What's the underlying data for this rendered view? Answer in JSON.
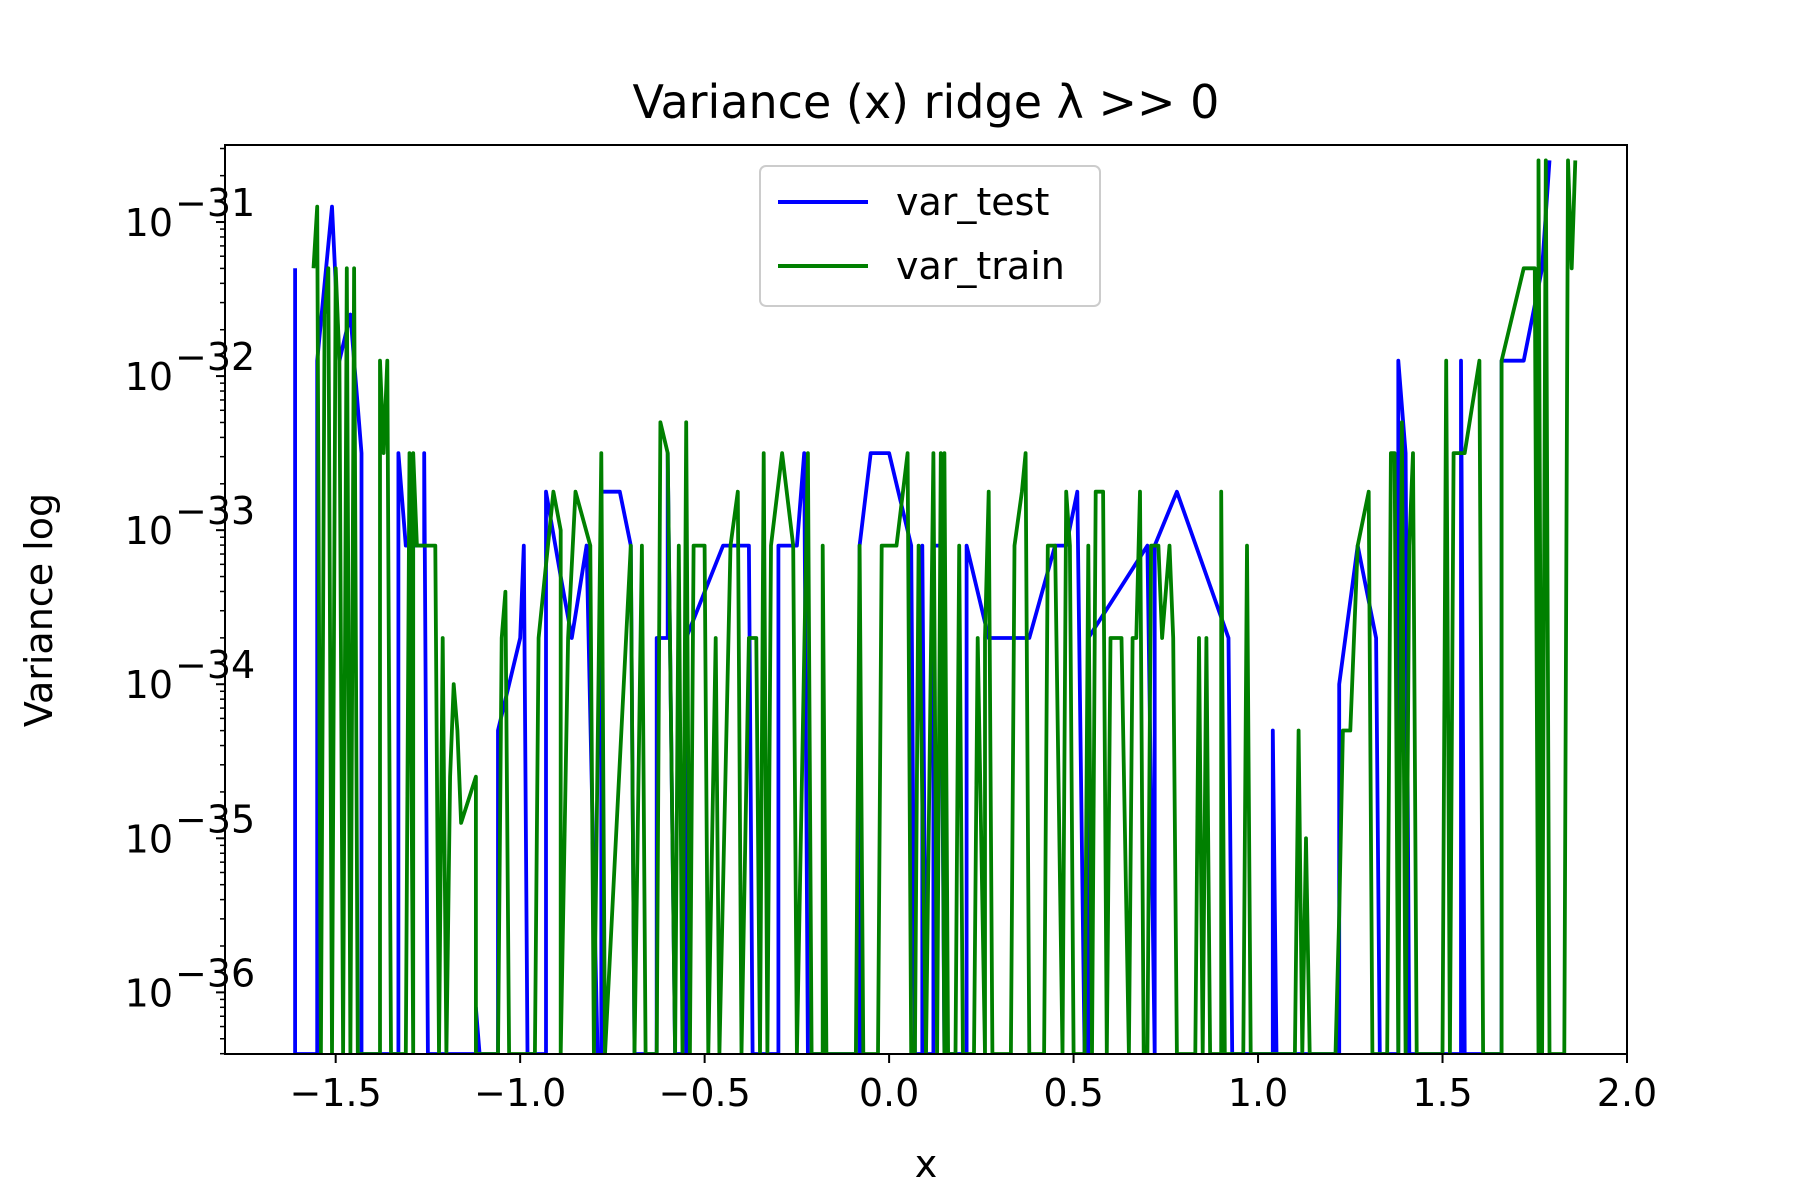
{
  "chart_data": {
    "type": "line",
    "title": "Variance (x) ridge λ >> 0",
    "xlabel": "x",
    "ylabel": "Variance log",
    "yscale": "log",
    "xlim": [
      -1.8,
      2.0
    ],
    "ylim_exponent": [
      -36.4,
      -30.5
    ],
    "xticks": [
      -1.5,
      -1.0,
      -0.5,
      0.0,
      0.5,
      1.0,
      1.5,
      2.0
    ],
    "xtick_labels": [
      "−1.5",
      "−1.0",
      "−0.5",
      "0.0",
      "0.5",
      "1.0",
      "1.5",
      "2.0"
    ],
    "ytick_exponents": [
      -36,
      -35,
      -34,
      -33,
      -32,
      -31
    ],
    "ytick_base": "10",
    "ytick_sup": [
      "−36",
      "−35",
      "−34",
      "−33",
      "−32",
      "−31"
    ],
    "grid": false,
    "legend_position": "top-center",
    "series": [
      {
        "name": "var_test",
        "color": "#0000ff",
        "points": [
          [
            -1.61,
            -31.3
          ],
          [
            -1.61,
            -36.4
          ],
          [
            -1.55,
            -36.4
          ],
          [
            -1.55,
            -31.9
          ],
          [
            -1.51,
            -30.9
          ],
          [
            -1.49,
            -31.9
          ],
          [
            -1.46,
            -31.6
          ],
          [
            -1.43,
            -32.5
          ],
          [
            -1.43,
            -36.4
          ],
          [
            -1.33,
            -36.4
          ],
          [
            -1.33,
            -32.5
          ],
          [
            -1.31,
            -33.1
          ],
          [
            -1.26,
            -33.1
          ],
          [
            -1.26,
            -32.5
          ],
          [
            -1.25,
            -36.4
          ],
          [
            -1.12,
            -36.4
          ],
          [
            -1.12,
            -36.1
          ],
          [
            -1.11,
            -36.4
          ],
          [
            -1.06,
            -36.4
          ],
          [
            -1.06,
            -34.3
          ],
          [
            -1.0,
            -33.7
          ],
          [
            -0.99,
            -33.1
          ],
          [
            -0.98,
            -36.4
          ],
          [
            -0.93,
            -36.4
          ],
          [
            -0.93,
            -32.75
          ],
          [
            -0.89,
            -33.3
          ],
          [
            -0.86,
            -33.7
          ],
          [
            -0.82,
            -33.1
          ],
          [
            -0.79,
            -36.4
          ],
          [
            -0.78,
            -36.4
          ],
          [
            -0.78,
            -32.75
          ],
          [
            -0.73,
            -32.75
          ],
          [
            -0.7,
            -33.1
          ],
          [
            -0.69,
            -36.4
          ],
          [
            -0.63,
            -36.4
          ],
          [
            -0.63,
            -33.7
          ],
          [
            -0.6,
            -33.7
          ],
          [
            -0.6,
            -32.5
          ],
          [
            -0.58,
            -36.4
          ],
          [
            -0.55,
            -36.4
          ],
          [
            -0.55,
            -33.7
          ],
          [
            -0.45,
            -33.1
          ],
          [
            -0.38,
            -33.1
          ],
          [
            -0.37,
            -36.4
          ],
          [
            -0.3,
            -36.4
          ],
          [
            -0.3,
            -33.1
          ],
          [
            -0.25,
            -33.1
          ],
          [
            -0.23,
            -32.5
          ],
          [
            -0.22,
            -36.4
          ],
          [
            -0.08,
            -36.4
          ],
          [
            -0.08,
            -33.1
          ],
          [
            -0.05,
            -32.5
          ],
          [
            0.0,
            -32.5
          ],
          [
            0.06,
            -33.1
          ],
          [
            0.07,
            -36.4
          ],
          [
            0.09,
            -36.4
          ],
          [
            0.09,
            -33.1
          ],
          [
            0.1,
            -36.4
          ],
          [
            0.12,
            -36.4
          ],
          [
            0.12,
            -33.1
          ],
          [
            0.14,
            -33.1
          ],
          [
            0.15,
            -36.4
          ],
          [
            0.21,
            -36.4
          ],
          [
            0.21,
            -33.1
          ],
          [
            0.27,
            -33.7
          ],
          [
            0.36,
            -33.7
          ],
          [
            0.38,
            -33.7
          ],
          [
            0.45,
            -33.1
          ],
          [
            0.48,
            -33.1
          ],
          [
            0.51,
            -32.75
          ],
          [
            0.53,
            -36.4
          ],
          [
            0.54,
            -36.4
          ],
          [
            0.54,
            -33.7
          ],
          [
            0.62,
            -33.4
          ],
          [
            0.7,
            -33.1
          ],
          [
            0.72,
            -36.4
          ],
          [
            0.72,
            -33.1
          ],
          [
            0.78,
            -32.75
          ],
          [
            0.92,
            -33.7
          ],
          [
            0.93,
            -36.4
          ],
          [
            1.04,
            -36.4
          ],
          [
            1.04,
            -34.3
          ],
          [
            1.05,
            -36.4
          ],
          [
            1.22,
            -36.4
          ],
          [
            1.22,
            -34.0
          ],
          [
            1.27,
            -33.1
          ],
          [
            1.32,
            -33.7
          ],
          [
            1.33,
            -36.4
          ],
          [
            1.38,
            -36.4
          ],
          [
            1.38,
            -31.9
          ],
          [
            1.4,
            -32.5
          ],
          [
            1.41,
            -36.4
          ],
          [
            1.55,
            -36.4
          ],
          [
            1.55,
            -31.9
          ],
          [
            1.56,
            -36.4
          ],
          [
            1.66,
            -36.4
          ],
          [
            1.66,
            -31.9
          ],
          [
            1.72,
            -31.9
          ],
          [
            1.77,
            -31.3
          ],
          [
            1.79,
            -30.6
          ]
        ]
      },
      {
        "name": "var_train",
        "color": "#008000",
        "points": [
          [
            -1.56,
            -31.3
          ],
          [
            -1.55,
            -30.9
          ],
          [
            -1.54,
            -36.4
          ],
          [
            -1.53,
            -31.6
          ],
          [
            -1.52,
            -31.3
          ],
          [
            -1.51,
            -36.4
          ],
          [
            -1.5,
            -31.3
          ],
          [
            -1.49,
            -31.9
          ],
          [
            -1.48,
            -36.4
          ],
          [
            -1.47,
            -31.3
          ],
          [
            -1.46,
            -36.4
          ],
          [
            -1.45,
            -31.3
          ],
          [
            -1.44,
            -36.4
          ],
          [
            -1.38,
            -36.4
          ],
          [
            -1.38,
            -31.9
          ],
          [
            -1.37,
            -32.5
          ],
          [
            -1.36,
            -31.9
          ],
          [
            -1.35,
            -36.4
          ],
          [
            -1.31,
            -36.4
          ],
          [
            -1.3,
            -32.5
          ],
          [
            -1.29,
            -36.4
          ],
          [
            -1.29,
            -32.5
          ],
          [
            -1.28,
            -33.1
          ],
          [
            -1.25,
            -33.1
          ],
          [
            -1.23,
            -33.1
          ],
          [
            -1.22,
            -36.4
          ],
          [
            -1.21,
            -33.7
          ],
          [
            -1.2,
            -36.4
          ],
          [
            -1.19,
            -34.6
          ],
          [
            -1.18,
            -34.0
          ],
          [
            -1.17,
            -34.3
          ],
          [
            -1.16,
            -34.9
          ],
          [
            -1.12,
            -34.6
          ],
          [
            -1.12,
            -36.4
          ],
          [
            -1.06,
            -36.4
          ],
          [
            -1.05,
            -33.7
          ],
          [
            -1.04,
            -33.4
          ],
          [
            -1.03,
            -36.4
          ],
          [
            -0.96,
            -36.4
          ],
          [
            -0.95,
            -33.7
          ],
          [
            -0.91,
            -32.75
          ],
          [
            -0.89,
            -33.0
          ],
          [
            -0.89,
            -36.4
          ],
          [
            -0.87,
            -33.7
          ],
          [
            -0.85,
            -32.75
          ],
          [
            -0.81,
            -33.1
          ],
          [
            -0.8,
            -36.4
          ],
          [
            -0.78,
            -32.5
          ],
          [
            -0.77,
            -36.4
          ],
          [
            -0.7,
            -33.1
          ],
          [
            -0.69,
            -36.4
          ],
          [
            -0.67,
            -33.1
          ],
          [
            -0.66,
            -36.4
          ],
          [
            -0.63,
            -36.4
          ],
          [
            -0.62,
            -32.3
          ],
          [
            -0.6,
            -32.5
          ],
          [
            -0.58,
            -36.4
          ],
          [
            -0.57,
            -33.1
          ],
          [
            -0.56,
            -36.4
          ],
          [
            -0.55,
            -32.3
          ],
          [
            -0.54,
            -36.4
          ],
          [
            -0.53,
            -33.1
          ],
          [
            -0.5,
            -33.1
          ],
          [
            -0.49,
            -36.4
          ],
          [
            -0.47,
            -33.7
          ],
          [
            -0.46,
            -36.4
          ],
          [
            -0.43,
            -33.1
          ],
          [
            -0.41,
            -32.75
          ],
          [
            -0.4,
            -36.4
          ],
          [
            -0.38,
            -33.7
          ],
          [
            -0.36,
            -33.7
          ],
          [
            -0.35,
            -36.4
          ],
          [
            -0.34,
            -32.5
          ],
          [
            -0.33,
            -36.4
          ],
          [
            -0.32,
            -33.1
          ],
          [
            -0.29,
            -32.5
          ],
          [
            -0.26,
            -33.1
          ],
          [
            -0.25,
            -36.4
          ],
          [
            -0.22,
            -32.5
          ],
          [
            -0.21,
            -36.4
          ],
          [
            -0.18,
            -36.4
          ],
          [
            -0.18,
            -33.1
          ],
          [
            -0.17,
            -36.4
          ],
          [
            -0.09,
            -36.4
          ],
          [
            -0.08,
            -33.1
          ],
          [
            -0.07,
            -36.4
          ],
          [
            -0.03,
            -36.4
          ],
          [
            -0.02,
            -33.1
          ],
          [
            0.02,
            -33.1
          ],
          [
            0.05,
            -32.5
          ],
          [
            0.06,
            -36.4
          ],
          [
            0.07,
            -36.4
          ],
          [
            0.08,
            -33.1
          ],
          [
            0.1,
            -36.4
          ],
          [
            0.12,
            -32.5
          ],
          [
            0.13,
            -36.4
          ],
          [
            0.14,
            -32.5
          ],
          [
            0.15,
            -36.4
          ],
          [
            0.15,
            -32.5
          ],
          [
            0.16,
            -36.4
          ],
          [
            0.18,
            -36.4
          ],
          [
            0.19,
            -33.1
          ],
          [
            0.2,
            -36.4
          ],
          [
            0.23,
            -36.4
          ],
          [
            0.24,
            -33.7
          ],
          [
            0.26,
            -36.4
          ],
          [
            0.26,
            -33.7
          ],
          [
            0.27,
            -32.75
          ],
          [
            0.28,
            -36.4
          ],
          [
            0.33,
            -36.4
          ],
          [
            0.34,
            -33.1
          ],
          [
            0.36,
            -32.75
          ],
          [
            0.37,
            -32.5
          ],
          [
            0.38,
            -36.4
          ],
          [
            0.42,
            -36.4
          ],
          [
            0.43,
            -33.1
          ],
          [
            0.45,
            -33.1
          ],
          [
            0.47,
            -36.4
          ],
          [
            0.48,
            -32.75
          ],
          [
            0.49,
            -33.1
          ],
          [
            0.5,
            -36.4
          ],
          [
            0.53,
            -36.4
          ],
          [
            0.54,
            -33.1
          ],
          [
            0.55,
            -36.4
          ],
          [
            0.56,
            -32.75
          ],
          [
            0.58,
            -32.75
          ],
          [
            0.59,
            -36.4
          ],
          [
            0.6,
            -33.7
          ],
          [
            0.63,
            -33.7
          ],
          [
            0.65,
            -36.4
          ],
          [
            0.66,
            -33.7
          ],
          [
            0.67,
            -33.7
          ],
          [
            0.68,
            -32.75
          ],
          [
            0.69,
            -36.4
          ],
          [
            0.7,
            -36.4
          ],
          [
            0.71,
            -33.1
          ],
          [
            0.73,
            -33.1
          ],
          [
            0.74,
            -33.7
          ],
          [
            0.75,
            -33.4
          ],
          [
            0.76,
            -33.1
          ],
          [
            0.77,
            -33.7
          ],
          [
            0.78,
            -36.4
          ],
          [
            0.83,
            -36.4
          ],
          [
            0.84,
            -33.7
          ],
          [
            0.85,
            -36.4
          ],
          [
            0.86,
            -33.7
          ],
          [
            0.87,
            -36.4
          ],
          [
            0.9,
            -36.4
          ],
          [
            0.9,
            -32.75
          ],
          [
            0.91,
            -36.4
          ],
          [
            0.96,
            -36.4
          ],
          [
            0.97,
            -33.1
          ],
          [
            0.98,
            -36.4
          ],
          [
            1.1,
            -36.4
          ],
          [
            1.11,
            -34.3
          ],
          [
            1.12,
            -36.4
          ],
          [
            1.13,
            -35.0
          ],
          [
            1.14,
            -36.4
          ],
          [
            1.21,
            -36.4
          ],
          [
            1.22,
            -35.5
          ],
          [
            1.23,
            -34.3
          ],
          [
            1.25,
            -34.3
          ],
          [
            1.27,
            -33.1
          ],
          [
            1.3,
            -32.75
          ],
          [
            1.31,
            -36.4
          ],
          [
            1.35,
            -36.4
          ],
          [
            1.36,
            -32.5
          ],
          [
            1.37,
            -32.5
          ],
          [
            1.38,
            -36.4
          ],
          [
            1.39,
            -32.3
          ],
          [
            1.4,
            -36.4
          ],
          [
            1.41,
            -33.1
          ],
          [
            1.42,
            -32.5
          ],
          [
            1.43,
            -36.4
          ],
          [
            1.44,
            -36.4
          ],
          [
            1.45,
            -36.4
          ],
          [
            1.5,
            -36.4
          ],
          [
            1.51,
            -31.9
          ],
          [
            1.52,
            -36.4
          ],
          [
            1.53,
            -32.5
          ],
          [
            1.56,
            -32.5
          ],
          [
            1.6,
            -31.9
          ],
          [
            1.61,
            -36.4
          ],
          [
            1.66,
            -36.4
          ],
          [
            1.66,
            -31.9
          ],
          [
            1.72,
            -31.3
          ],
          [
            1.75,
            -31.3
          ],
          [
            1.76,
            -36.4
          ],
          [
            1.76,
            -30.6
          ],
          [
            1.77,
            -36.4
          ],
          [
            1.78,
            -30.6
          ],
          [
            1.79,
            -36.4
          ],
          [
            1.8,
            -36.4
          ],
          [
            1.83,
            -36.4
          ],
          [
            1.84,
            -30.6
          ],
          [
            1.85,
            -31.3
          ],
          [
            1.86,
            -30.6
          ]
        ]
      }
    ]
  }
}
